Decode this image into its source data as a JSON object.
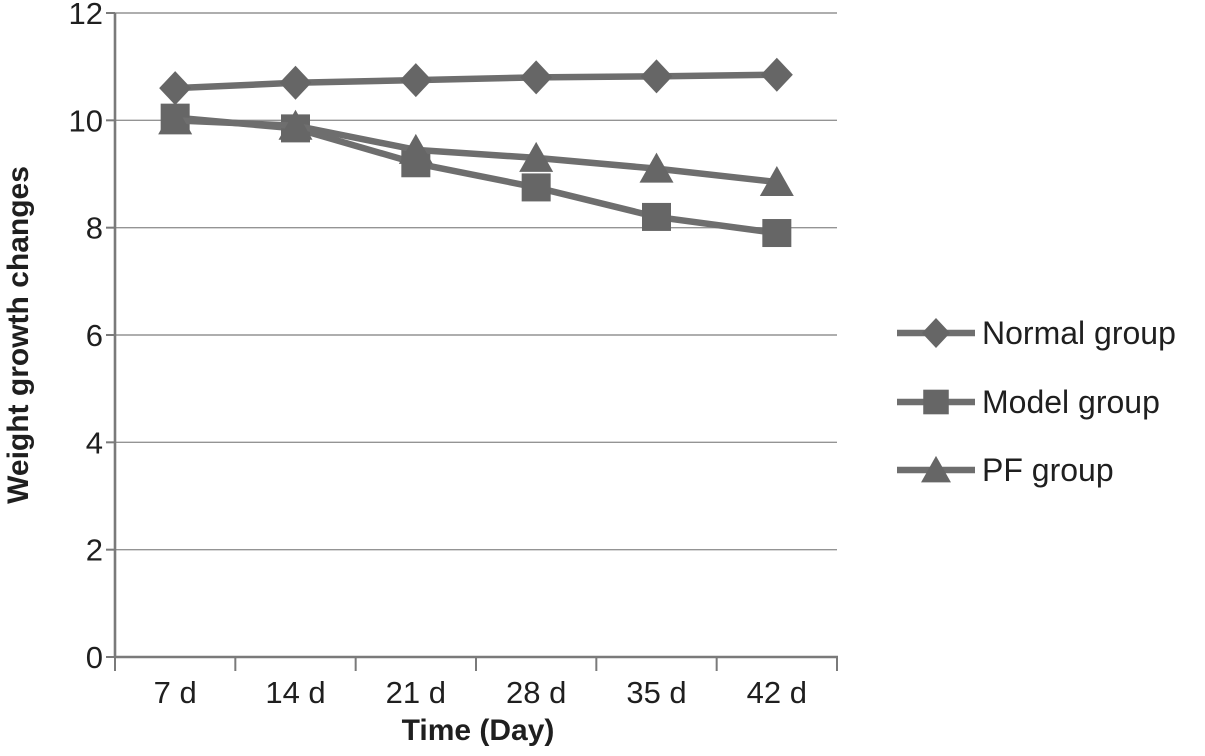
{
  "chart_data": {
    "type": "line",
    "title": "",
    "xlabel": "Time (Day)",
    "ylabel": "Weight growth changes",
    "categories": [
      "7 d",
      "14 d",
      "21 d",
      "28 d",
      "35 d",
      "42 d"
    ],
    "series": [
      {
        "name": "Normal group",
        "marker": "diamond",
        "values": [
          10.6,
          10.7,
          10.75,
          10.8,
          10.82,
          10.85
        ]
      },
      {
        "name": "Model group",
        "marker": "square",
        "values": [
          10.05,
          9.85,
          9.2,
          8.75,
          8.2,
          7.9
        ]
      },
      {
        "name": "PF group",
        "marker": "triangle",
        "values": [
          10.0,
          9.9,
          9.45,
          9.3,
          9.1,
          8.85
        ]
      }
    ],
    "ylim": [
      0,
      12
    ],
    "ytick_step": 2,
    "yticks": [
      0,
      2,
      4,
      6,
      8,
      10,
      12
    ],
    "grid": true,
    "legend_position": "right",
    "colors": {
      "line": "#6e6e6e",
      "marker": "#666666",
      "gridline": "#949494",
      "axis": "#7a7a7a",
      "text": "#1f1f1f"
    }
  }
}
